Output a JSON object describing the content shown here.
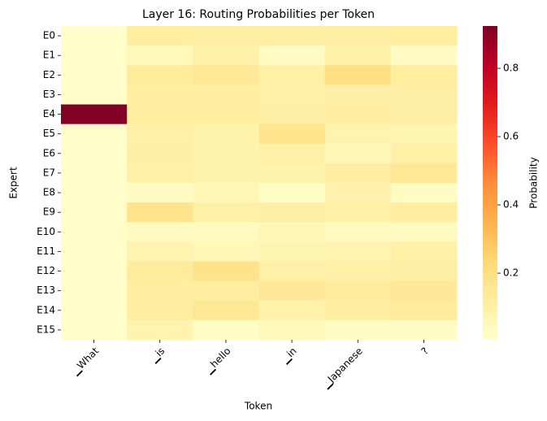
{
  "chart_data": {
    "type": "heatmap",
    "title": "Layer 16: Routing Probabilities per Token",
    "x_label": "Token",
    "y_label": "Expert",
    "colorbar_label": "Probability",
    "x_categories": [
      "▁What",
      "▁is",
      "▁hello",
      "▁in",
      "▁Japanese",
      "?"
    ],
    "y_categories": [
      "E0",
      "E1",
      "E2",
      "E3",
      "E4",
      "E5",
      "E6",
      "E7",
      "E8",
      "E9",
      "E10",
      "E11",
      "E12",
      "E13",
      "E14",
      "E15"
    ],
    "values": [
      [
        0.01,
        0.12,
        0.11,
        0.11,
        0.11,
        0.12
      ],
      [
        0.01,
        0.05,
        0.1,
        0.03,
        0.1,
        0.03
      ],
      [
        0.01,
        0.13,
        0.15,
        0.1,
        0.2,
        0.12
      ],
      [
        0.01,
        0.12,
        0.12,
        0.1,
        0.11,
        0.11
      ],
      [
        0.92,
        0.12,
        0.12,
        0.11,
        0.12,
        0.11
      ],
      [
        0.01,
        0.1,
        0.09,
        0.17,
        0.08,
        0.07
      ],
      [
        0.01,
        0.11,
        0.09,
        0.1,
        0.06,
        0.1
      ],
      [
        0.01,
        0.1,
        0.09,
        0.09,
        0.12,
        0.15
      ],
      [
        0.01,
        0.03,
        0.06,
        0.02,
        0.08,
        0.03
      ],
      [
        0.01,
        0.17,
        0.1,
        0.11,
        0.1,
        0.12
      ],
      [
        0.01,
        0.04,
        0.04,
        0.06,
        0.04,
        0.04
      ],
      [
        0.01,
        0.08,
        0.06,
        0.07,
        0.08,
        0.1
      ],
      [
        0.01,
        0.13,
        0.18,
        0.1,
        0.1,
        0.11
      ],
      [
        0.01,
        0.12,
        0.12,
        0.14,
        0.13,
        0.14
      ],
      [
        0.01,
        0.12,
        0.15,
        0.09,
        0.12,
        0.13
      ],
      [
        0.01,
        0.08,
        0.02,
        0.05,
        0.03,
        0.03
      ]
    ],
    "colormap": "YlOrRd",
    "clim": [
      0.005,
      0.924
    ],
    "cticks": [
      0.2,
      0.4,
      0.6,
      0.8
    ]
  }
}
